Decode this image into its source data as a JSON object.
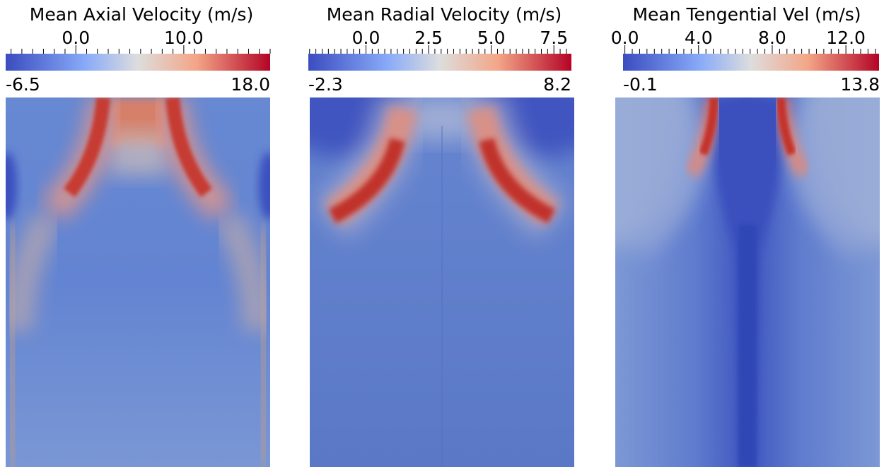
{
  "chart_data": [
    {
      "type": "heatmap",
      "title": "Mean Axial Velocity (m/s)",
      "colormap": "cool-to-warm",
      "colorbar": {
        "min": -6.5,
        "max": 18.0,
        "tick_labels": [
          "0.0",
          "10.0"
        ],
        "tick_values": [
          0.0,
          10.0
        ],
        "min_label": "-6.5",
        "max_label": "18.0"
      }
    },
    {
      "type": "heatmap",
      "title": "Mean Radial Velocity (m/s)",
      "colormap": "cool-to-warm",
      "colorbar": {
        "min": -2.3,
        "max": 8.2,
        "tick_labels": [
          "0.0",
          "2.5",
          "5.0",
          "7.5"
        ],
        "tick_values": [
          0.0,
          2.5,
          5.0,
          7.5
        ],
        "min_label": "-2.3",
        "max_label": "8.2"
      }
    },
    {
      "type": "heatmap",
      "title": "Mean Tengential Vel (m/s)",
      "colormap": "cool-to-warm",
      "colorbar": {
        "min": -0.1,
        "max": 13.8,
        "tick_labels": [
          "0.0",
          "4.0",
          "8.0",
          "12.0"
        ],
        "tick_values": [
          0.0,
          4.0,
          8.0,
          12.0
        ],
        "min_label": "-0.1",
        "max_label": "13.8"
      }
    }
  ],
  "colors": {
    "cold": "#3b4cc0",
    "mid": "#dddddd",
    "warm": "#b40426",
    "background": "#ffffff"
  }
}
